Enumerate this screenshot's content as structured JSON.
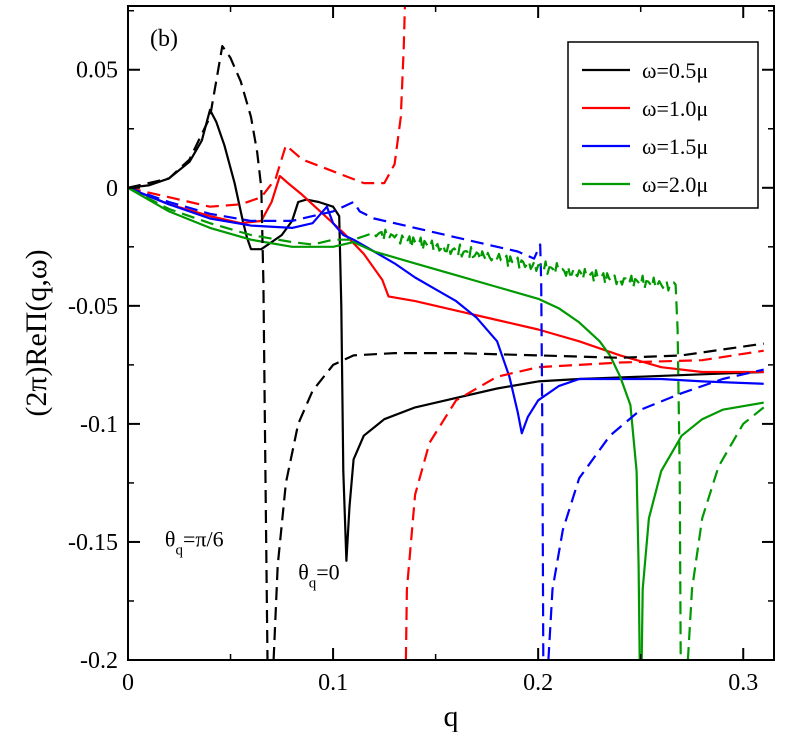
{
  "chart_data": {
    "type": "line",
    "panel_label": "(b)",
    "xlabel": "q",
    "ylabel": "(2π)ReΠ(q,ω)",
    "xlim": [
      0,
      0.315
    ],
    "ylim": [
      -0.2,
      0.077
    ],
    "x_ticks": [
      0,
      0.1,
      0.2,
      0.3
    ],
    "x_tick_labels": [
      "0",
      "0.1",
      "0.2",
      "0.3"
    ],
    "y_ticks": [
      0.05,
      0,
      -0.05,
      -0.1,
      -0.15,
      -0.2
    ],
    "y_tick_labels": [
      "0.05",
      "0",
      "-0.05",
      "-0.1",
      "-0.15",
      "-0.2"
    ],
    "legend_position": "top-right",
    "annotations": [
      {
        "text": "θq=π/6",
        "main": "θ",
        "sub": "q",
        "rest": "=π/6"
      },
      {
        "text": "θq=0",
        "main": "θ",
        "sub": "q",
        "rest": "=0"
      }
    ],
    "series": [
      {
        "name": "ω=0.5μ",
        "color": "#000000",
        "style": "solid",
        "legend": true,
        "points": [
          [
            0,
            0
          ],
          [
            0.01,
            0.001
          ],
          [
            0.02,
            0.004
          ],
          [
            0.03,
            0.011
          ],
          [
            0.036,
            0.02
          ],
          [
            0.04,
            0.033
          ],
          [
            0.043,
            0.028
          ],
          [
            0.047,
            0.018
          ],
          [
            0.052,
            0.002
          ],
          [
            0.056,
            -0.014
          ],
          [
            0.058,
            -0.021
          ],
          [
            0.06,
            -0.026
          ],
          [
            0.062,
            -0.026
          ],
          [
            0.065,
            -0.026
          ],
          [
            0.07,
            -0.023
          ],
          [
            0.075,
            -0.02
          ],
          [
            0.08,
            -0.014
          ],
          [
            0.083,
            -0.006
          ],
          [
            0.087,
            -0.005
          ],
          [
            0.093,
            -0.006
          ],
          [
            0.1,
            -0.008
          ],
          [
            0.103,
            -0.012
          ],
          [
            0.104,
            -0.05
          ],
          [
            0.105,
            -0.12
          ],
          [
            0.1065,
            -0.158
          ],
          [
            0.108,
            -0.135
          ],
          [
            0.11,
            -0.115
          ],
          [
            0.115,
            -0.105
          ],
          [
            0.125,
            -0.098
          ],
          [
            0.14,
            -0.093
          ],
          [
            0.16,
            -0.089
          ],
          [
            0.18,
            -0.085
          ],
          [
            0.2,
            -0.082
          ],
          [
            0.22,
            -0.081
          ],
          [
            0.25,
            -0.08
          ],
          [
            0.28,
            -0.079
          ],
          [
            0.31,
            -0.078
          ]
        ]
      },
      {
        "name": "ω=1.0μ",
        "color": "#ff0000",
        "style": "solid",
        "legend": true,
        "points": [
          [
            0,
            0
          ],
          [
            0.02,
            -0.007
          ],
          [
            0.04,
            -0.012
          ],
          [
            0.055,
            -0.015
          ],
          [
            0.065,
            -0.014
          ],
          [
            0.07,
            -0.006
          ],
          [
            0.074,
            0.005
          ],
          [
            0.078,
            0.002
          ],
          [
            0.085,
            -0.003
          ],
          [
            0.095,
            -0.011
          ],
          [
            0.105,
            -0.019
          ],
          [
            0.115,
            -0.028
          ],
          [
            0.124,
            -0.039
          ],
          [
            0.127,
            -0.046
          ],
          [
            0.14,
            -0.048
          ],
          [
            0.16,
            -0.052
          ],
          [
            0.18,
            -0.056
          ],
          [
            0.2,
            -0.06
          ],
          [
            0.22,
            -0.065
          ],
          [
            0.24,
            -0.071
          ],
          [
            0.26,
            -0.076
          ],
          [
            0.28,
            -0.078
          ],
          [
            0.31,
            -0.078
          ]
        ]
      },
      {
        "name": "ω=1.5μ",
        "color": "#0000ff",
        "style": "solid",
        "legend": true,
        "points": [
          [
            0,
            0
          ],
          [
            0.02,
            -0.007
          ],
          [
            0.04,
            -0.013
          ],
          [
            0.06,
            -0.016
          ],
          [
            0.08,
            -0.017
          ],
          [
            0.09,
            -0.015
          ],
          [
            0.097,
            -0.008
          ],
          [
            0.1,
            -0.015
          ],
          [
            0.105,
            -0.02
          ],
          [
            0.11,
            -0.022
          ],
          [
            0.12,
            -0.027
          ],
          [
            0.13,
            -0.032
          ],
          [
            0.14,
            -0.038
          ],
          [
            0.15,
            -0.043
          ],
          [
            0.16,
            -0.048
          ],
          [
            0.17,
            -0.055
          ],
          [
            0.18,
            -0.065
          ],
          [
            0.186,
            -0.08
          ],
          [
            0.19,
            -0.095
          ],
          [
            0.192,
            -0.104
          ],
          [
            0.195,
            -0.097
          ],
          [
            0.2,
            -0.09
          ],
          [
            0.21,
            -0.084
          ],
          [
            0.22,
            -0.081
          ],
          [
            0.24,
            -0.081
          ],
          [
            0.26,
            -0.081
          ],
          [
            0.28,
            -0.082
          ],
          [
            0.31,
            -0.083
          ]
        ]
      },
      {
        "name": "ω=2.0μ",
        "color": "#009900",
        "style": "solid",
        "legend": true,
        "points": [
          [
            0,
            0
          ],
          [
            0.02,
            -0.01
          ],
          [
            0.04,
            -0.017
          ],
          [
            0.06,
            -0.022
          ],
          [
            0.08,
            -0.025
          ],
          [
            0.1,
            -0.025
          ],
          [
            0.11,
            -0.023
          ],
          [
            0.12,
            -0.027
          ],
          [
            0.14,
            -0.032
          ],
          [
            0.16,
            -0.037
          ],
          [
            0.18,
            -0.042
          ],
          [
            0.2,
            -0.047
          ],
          [
            0.21,
            -0.051
          ],
          [
            0.22,
            -0.057
          ],
          [
            0.23,
            -0.065
          ],
          [
            0.235,
            -0.071
          ],
          [
            0.24,
            -0.08
          ],
          [
            0.245,
            -0.092
          ],
          [
            0.248,
            -0.12
          ],
          [
            0.249,
            -0.16
          ],
          [
            0.2495,
            -0.2
          ]
        ]
      },
      {
        "name": "ω=2.0μ (right branch)",
        "color": "#009900",
        "style": "solid",
        "legend": false,
        "points": [
          [
            0.2505,
            -0.2
          ],
          [
            0.251,
            -0.17
          ],
          [
            0.254,
            -0.14
          ],
          [
            0.26,
            -0.12
          ],
          [
            0.27,
            -0.105
          ],
          [
            0.28,
            -0.098
          ],
          [
            0.29,
            -0.094
          ],
          [
            0.31,
            -0.091
          ]
        ]
      },
      {
        "name": "ω=0.5μ dashed",
        "color": "#000000",
        "style": "dashed",
        "legend": false,
        "points": [
          [
            0,
            0
          ],
          [
            0.02,
            0.004
          ],
          [
            0.03,
            0.012
          ],
          [
            0.04,
            0.03
          ],
          [
            0.046,
            0.06
          ],
          [
            0.05,
            0.055
          ],
          [
            0.055,
            0.045
          ],
          [
            0.06,
            0.03
          ],
          [
            0.063,
            0.015
          ],
          [
            0.065,
            0
          ],
          [
            0.066,
            -0.04
          ],
          [
            0.067,
            -0.12
          ],
          [
            0.068,
            -0.2
          ]
        ]
      },
      {
        "name": "ω=0.5μ dashed (right branch)",
        "color": "#000000",
        "style": "dashed",
        "legend": false,
        "points": [
          [
            0.071,
            -0.2
          ],
          [
            0.073,
            -0.16
          ],
          [
            0.077,
            -0.125
          ],
          [
            0.083,
            -0.1
          ],
          [
            0.09,
            -0.086
          ],
          [
            0.1,
            -0.075
          ],
          [
            0.11,
            -0.071
          ],
          [
            0.13,
            -0.07
          ],
          [
            0.16,
            -0.07
          ],
          [
            0.2,
            -0.071
          ],
          [
            0.24,
            -0.072
          ],
          [
            0.27,
            -0.071
          ],
          [
            0.31,
            -0.066
          ]
        ]
      },
      {
        "name": "ω=1.0μ dashed",
        "color": "#ff0000",
        "style": "dashed",
        "legend": false,
        "points": [
          [
            0,
            0
          ],
          [
            0.02,
            -0.004
          ],
          [
            0.04,
            -0.008
          ],
          [
            0.055,
            -0.007
          ],
          [
            0.065,
            -0.004
          ],
          [
            0.072,
            0.004
          ],
          [
            0.077,
            0.018
          ],
          [
            0.085,
            0.012
          ],
          [
            0.1,
            0.007
          ],
          [
            0.115,
            0.002
          ],
          [
            0.125,
            0.002
          ],
          [
            0.13,
            0.01
          ],
          [
            0.133,
            0.03
          ],
          [
            0.1345,
            0.06
          ],
          [
            0.135,
            0.077
          ]
        ]
      },
      {
        "name": "ω=1.0μ dashed (right branch)",
        "color": "#ff0000",
        "style": "dashed",
        "legend": false,
        "points": [
          [
            0.1355,
            -0.2
          ],
          [
            0.136,
            -0.17
          ],
          [
            0.14,
            -0.13
          ],
          [
            0.147,
            -0.108
          ],
          [
            0.16,
            -0.09
          ],
          [
            0.18,
            -0.08
          ],
          [
            0.2,
            -0.076
          ],
          [
            0.24,
            -0.074
          ],
          [
            0.28,
            -0.073
          ],
          [
            0.31,
            -0.069
          ]
        ]
      },
      {
        "name": "ω=1.5μ dashed",
        "color": "#0000ff",
        "style": "dashed",
        "legend": false,
        "points": [
          [
            0,
            0
          ],
          [
            0.02,
            -0.006
          ],
          [
            0.04,
            -0.011
          ],
          [
            0.06,
            -0.014
          ],
          [
            0.08,
            -0.014
          ],
          [
            0.09,
            -0.012
          ],
          [
            0.1,
            -0.01
          ],
          [
            0.11,
            -0.006
          ],
          [
            0.113,
            -0.01
          ],
          [
            0.12,
            -0.013
          ],
          [
            0.14,
            -0.017
          ],
          [
            0.16,
            -0.021
          ],
          [
            0.18,
            -0.025
          ],
          [
            0.19,
            -0.027
          ],
          [
            0.198,
            -0.03
          ],
          [
            0.2,
            -0.026
          ],
          [
            0.201,
            -0.024
          ],
          [
            0.2015,
            -0.04
          ],
          [
            0.202,
            -0.1
          ],
          [
            0.2025,
            -0.2
          ]
        ]
      },
      {
        "name": "ω=1.5μ dashed (right branch)",
        "color": "#0000ff",
        "style": "dashed",
        "legend": false,
        "points": [
          [
            0.205,
            -0.2
          ],
          [
            0.207,
            -0.17
          ],
          [
            0.212,
            -0.145
          ],
          [
            0.22,
            -0.123
          ],
          [
            0.235,
            -0.105
          ],
          [
            0.25,
            -0.094
          ],
          [
            0.27,
            -0.087
          ],
          [
            0.29,
            -0.081
          ],
          [
            0.31,
            -0.077
          ]
        ]
      },
      {
        "name": "ω=2.0μ dashed",
        "color": "#009900",
        "style": "dashed",
        "legend": false,
        "noise": true,
        "points": [
          [
            0,
            0
          ],
          [
            0.02,
            -0.009
          ],
          [
            0.04,
            -0.015
          ],
          [
            0.06,
            -0.02
          ],
          [
            0.08,
            -0.023
          ],
          [
            0.09,
            -0.024
          ],
          [
            0.1,
            -0.022
          ],
          [
            0.11,
            -0.022
          ],
          [
            0.12,
            -0.019
          ],
          [
            0.13,
            -0.021
          ],
          [
            0.15,
            -0.025
          ],
          [
            0.18,
            -0.03
          ],
          [
            0.21,
            -0.035
          ],
          [
            0.24,
            -0.039
          ],
          [
            0.26,
            -0.041
          ],
          [
            0.267,
            -0.041
          ],
          [
            0.268,
            -0.06
          ],
          [
            0.269,
            -0.12
          ],
          [
            0.2695,
            -0.2
          ]
        ]
      },
      {
        "name": "ω=2.0μ dashed (right branch)",
        "color": "#009900",
        "style": "dashed",
        "legend": false,
        "points": [
          [
            0.273,
            -0.2
          ],
          [
            0.275,
            -0.17
          ],
          [
            0.28,
            -0.14
          ],
          [
            0.288,
            -0.118
          ],
          [
            0.3,
            -0.1
          ],
          [
            0.31,
            -0.093
          ]
        ]
      }
    ]
  }
}
